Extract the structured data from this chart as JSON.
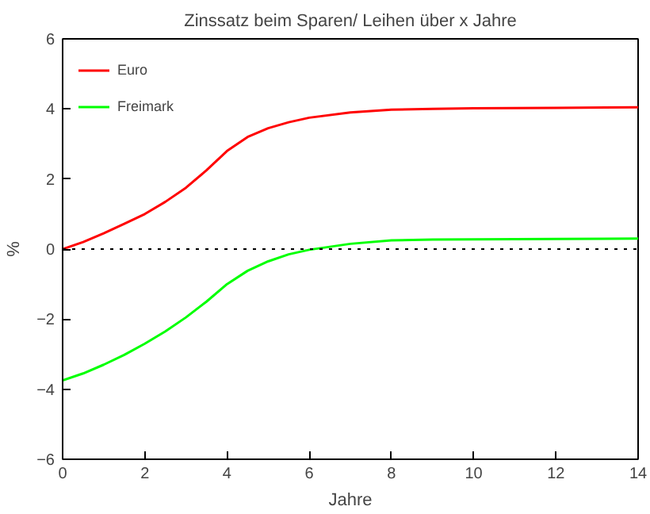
{
  "chart_data": {
    "type": "line",
    "title": "Zinssatz beim Sparen/ Leihen über x Jahre",
    "xlabel": "Jahre",
    "ylabel": "%",
    "xlim": [
      0,
      14
    ],
    "ylim": [
      -6,
      6
    ],
    "xticks": [
      0,
      2,
      4,
      6,
      8,
      10,
      12,
      14
    ],
    "yticks": [
      -6,
      -4,
      -2,
      0,
      2,
      4,
      6
    ],
    "grid": false,
    "legend": "top left",
    "line_style": "solid",
    "ref_lines": [
      {
        "axis": "y",
        "value": 0,
        "color": "#000000",
        "line_style": "dotted"
      }
    ],
    "series": [
      {
        "name": "Euro",
        "color": "#ff0000",
        "x": [
          0,
          0.5,
          1,
          1.5,
          2,
          2.5,
          3,
          3.5,
          4,
          4.5,
          5,
          5.5,
          6,
          7,
          8,
          9,
          10,
          12,
          14
        ],
        "values": [
          0,
          0.2,
          0.45,
          0.72,
          1.0,
          1.35,
          1.75,
          2.25,
          2.8,
          3.2,
          3.45,
          3.62,
          3.75,
          3.9,
          3.98,
          4.0,
          4.02,
          4.03,
          4.05
        ]
      },
      {
        "name": "Freimark",
        "color": "#00ff00",
        "x": [
          0,
          0.5,
          1,
          1.5,
          2,
          2.5,
          3,
          3.5,
          4,
          4.5,
          5,
          5.5,
          6,
          7,
          8,
          9,
          10,
          12,
          14
        ],
        "values": [
          -3.75,
          -3.55,
          -3.3,
          -3.02,
          -2.7,
          -2.35,
          -1.95,
          -1.5,
          -1.0,
          -0.62,
          -0.35,
          -0.15,
          -0.02,
          0.15,
          0.25,
          0.27,
          0.28,
          0.29,
          0.3
        ]
      }
    ]
  }
}
